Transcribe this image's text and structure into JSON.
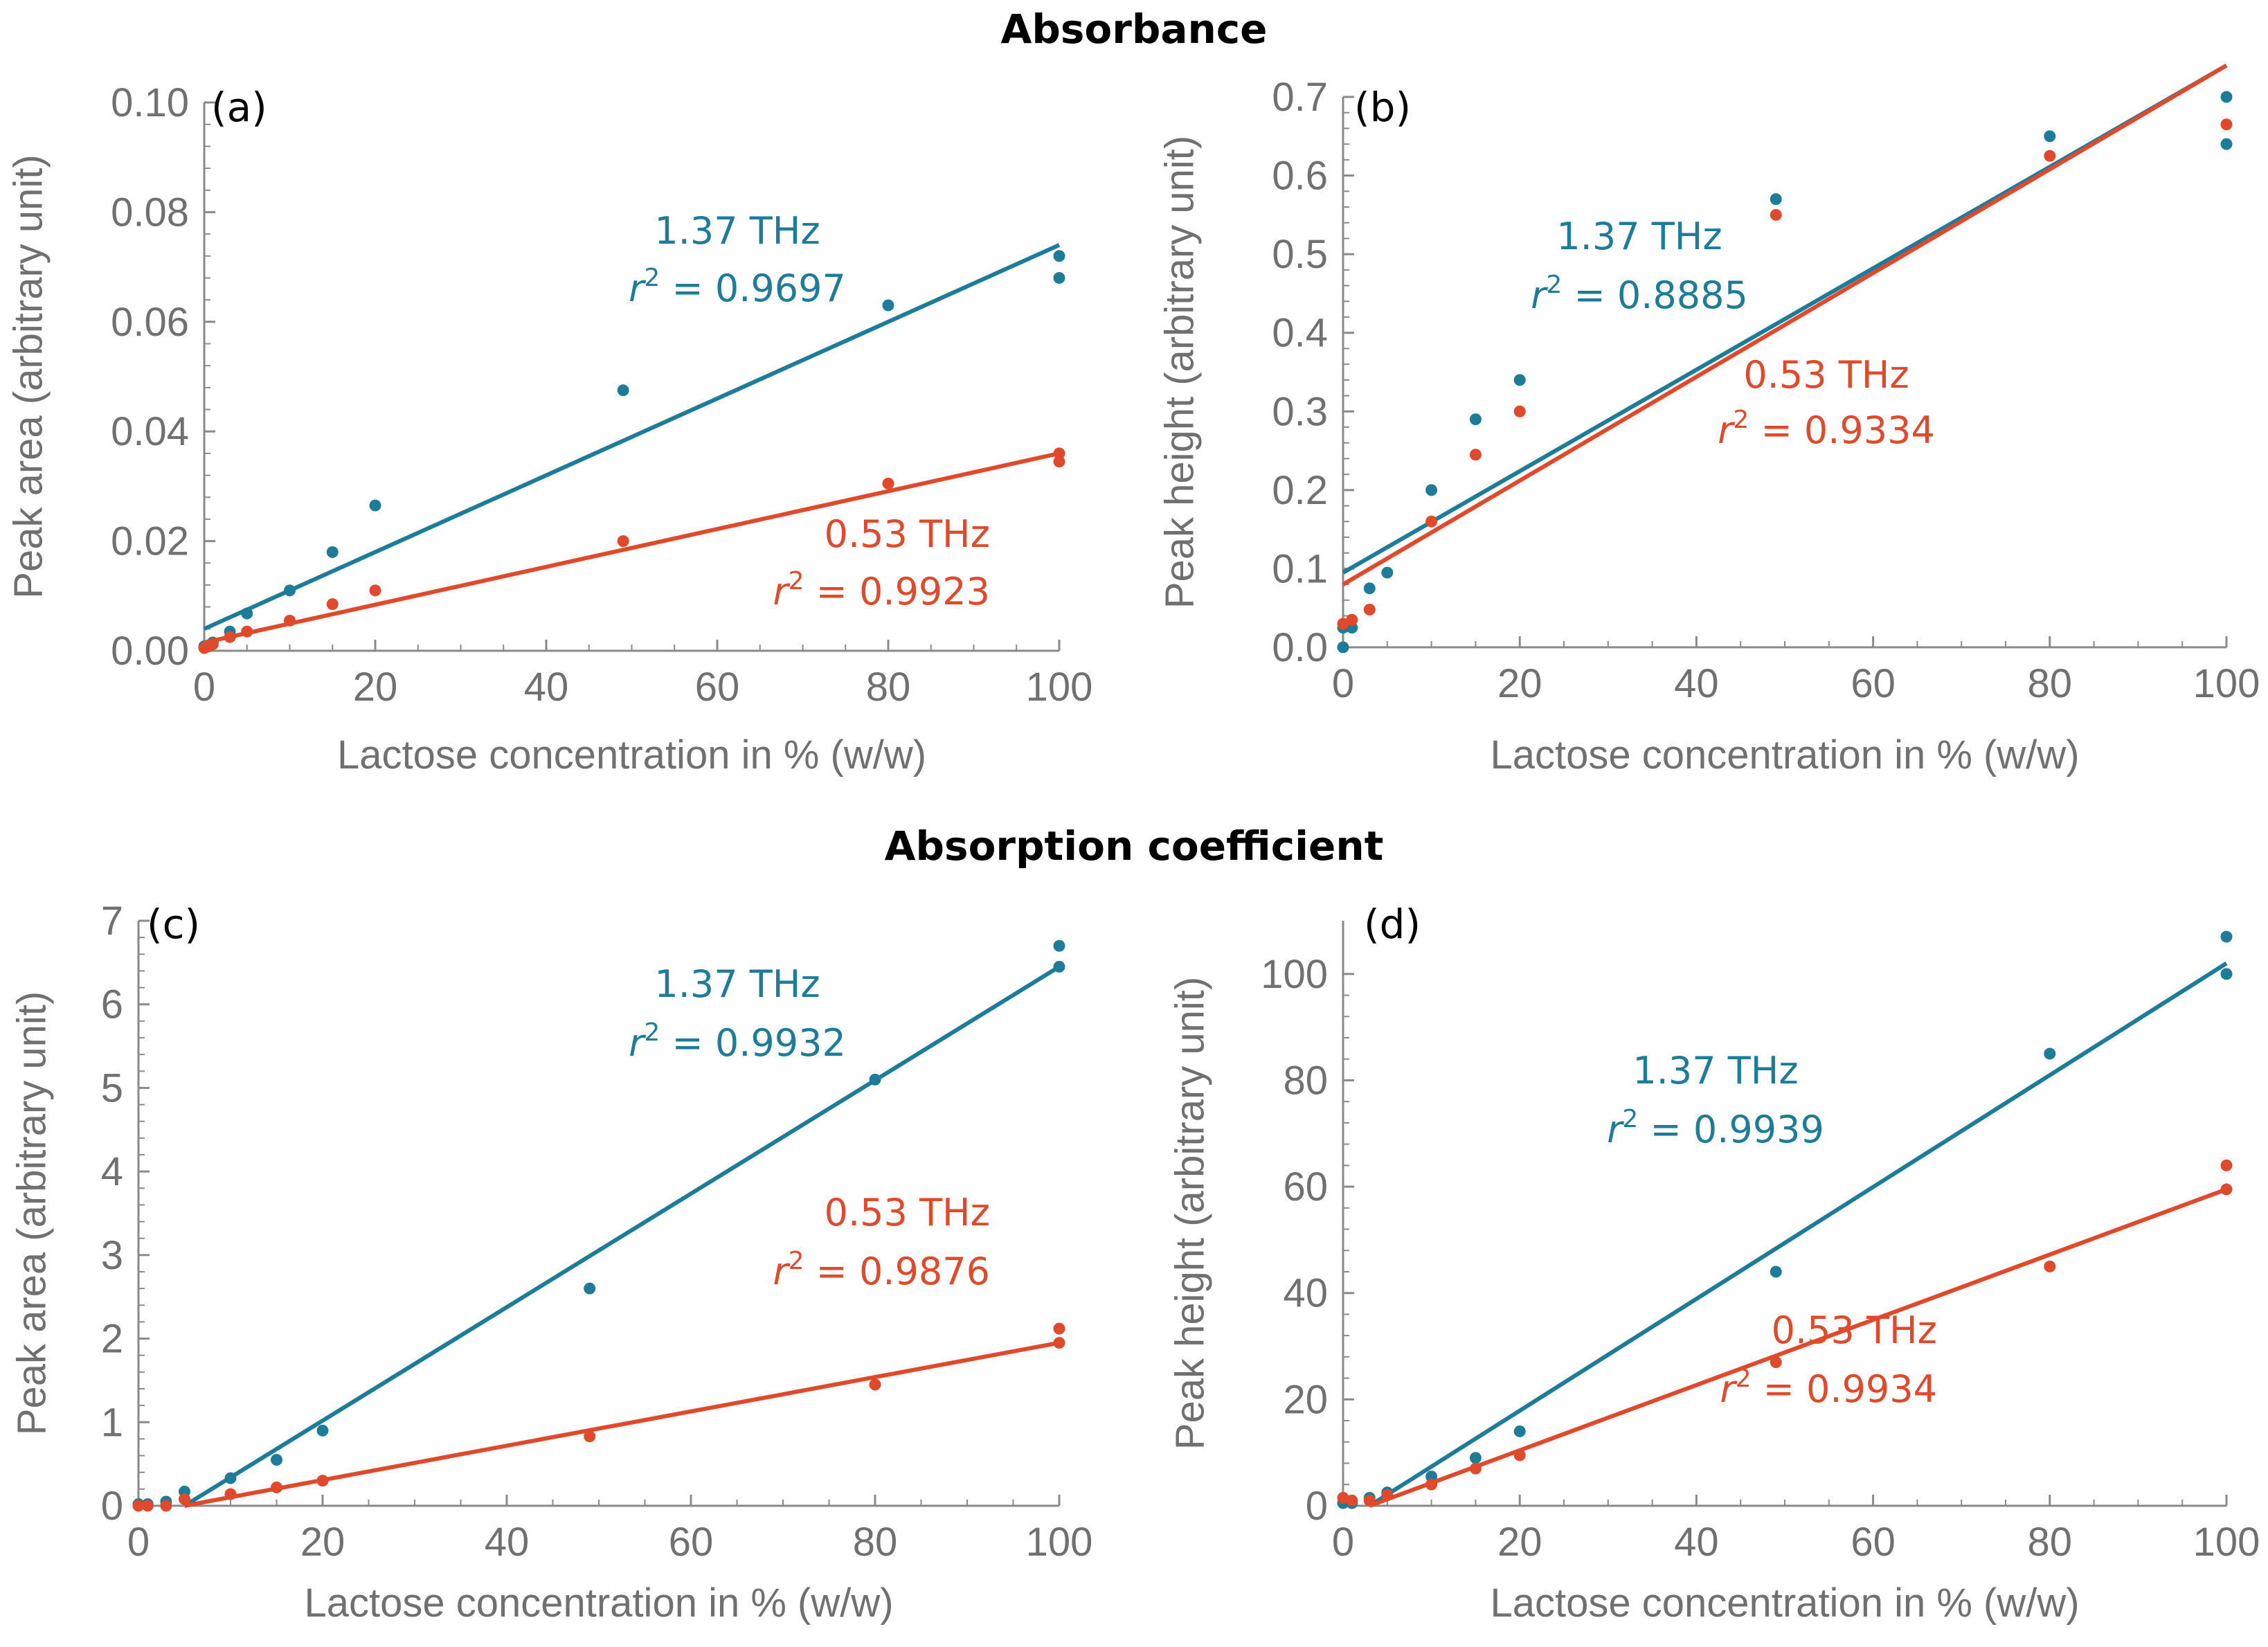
{
  "titles": {
    "top": "Absorbance",
    "bottom": "Absorption coefficient"
  },
  "colors": {
    "blue": "#1f7c99",
    "red": "#e04a2c",
    "axis": "#8a8a8a",
    "text": "#707070"
  },
  "chart_data": [
    {
      "type": "scatter",
      "label": "(a)",
      "xlabel": "Lactose concentration in % (w/w)",
      "ylabel": "Peak area (arbitrary unit)",
      "xlim": [
        0,
        100
      ],
      "ylim": [
        0,
        0.1
      ],
      "xticks": [
        0,
        20,
        40,
        60,
        80,
        100
      ],
      "yticks": [
        0,
        0.02,
        0.04,
        0.06,
        0.08,
        0.1
      ],
      "ytick_labels": [
        "0.00",
        "0.02",
        "0.04",
        "0.06",
        "0.08",
        "0.10"
      ],
      "series": [
        {
          "name": "1.37 THz",
          "r2_prefix": "r",
          "r2_sup": "2",
          "r2_text": " = 0.9697",
          "color": "blue",
          "x": [
            0,
            0.5,
            1,
            3,
            5,
            10,
            15,
            20,
            49,
            80,
            100,
            100
          ],
          "y": [
            0.0008,
            0.001,
            0.0015,
            0.0035,
            0.0068,
            0.011,
            0.018,
            0.0265,
            0.0475,
            0.063,
            0.072,
            0.068
          ],
          "fit": [
            [
              0,
              0.004
            ],
            [
              100,
              0.074
            ]
          ]
        },
        {
          "name": "0.53 THz",
          "r2_prefix": "r",
          "r2_sup": "2",
          "r2_text": " = 0.9923",
          "color": "red",
          "x": [
            0,
            0.5,
            1,
            3,
            5,
            10,
            15,
            20,
            49,
            80,
            100,
            100
          ],
          "y": [
            0.0005,
            0.0008,
            0.0012,
            0.0025,
            0.0035,
            0.0055,
            0.0085,
            0.011,
            0.02,
            0.0305,
            0.036,
            0.0345
          ],
          "fit": [
            [
              0,
              0.0015
            ],
            [
              100,
              0.036
            ]
          ]
        }
      ]
    },
    {
      "type": "scatter",
      "label": "(b)",
      "xlabel": "Lactose concentration in % (w/w)",
      "ylabel": "Peak height (arbitrary unit)",
      "xlim": [
        0,
        100
      ],
      "ylim": [
        0,
        0.7
      ],
      "xticks": [
        0,
        20,
        40,
        60,
        80,
        100
      ],
      "yticks": [
        0,
        0.1,
        0.2,
        0.3,
        0.4,
        0.5,
        0.6,
        0.7
      ],
      "ytick_labels": [
        "0.0",
        "0.1",
        "0.2",
        "0.3",
        "0.4",
        "0.5",
        "0.6",
        "0.7"
      ],
      "series": [
        {
          "name": "1.37 THz",
          "r2_prefix": "r",
          "r2_sup": "2",
          "r2_text": " = 0.8885",
          "color": "blue",
          "x": [
            0,
            0,
            1,
            3,
            5,
            10,
            15,
            20,
            49,
            80,
            100,
            100
          ],
          "y": [
            0.0,
            0.025,
            0.025,
            0.075,
            0.095,
            0.2,
            0.29,
            0.34,
            0.57,
            0.65,
            0.7,
            0.64
          ],
          "fit": [
            [
              0,
              0.095
            ],
            [
              100,
              0.74
            ]
          ]
        },
        {
          "name": "0.53 THz",
          "r2_prefix": "r",
          "r2_sup": "2",
          "r2_text": " = 0.9334",
          "color": "red",
          "x": [
            0,
            1,
            3,
            10,
            15,
            20,
            49,
            80,
            100
          ],
          "y": [
            0.03,
            0.035,
            0.048,
            0.16,
            0.245,
            0.3,
            0.55,
            0.625,
            0.665
          ],
          "fit": [
            [
              0,
              0.08
            ],
            [
              100,
              0.74
            ]
          ]
        }
      ]
    },
    {
      "type": "scatter",
      "label": "(c)",
      "xlabel": "Lactose concentration in % (w/w)",
      "ylabel": "Peak area (arbitrary unit)",
      "xlim": [
        0,
        100
      ],
      "ylim": [
        0,
        7
      ],
      "xticks": [
        0,
        20,
        40,
        60,
        80,
        100
      ],
      "yticks": [
        0,
        1,
        2,
        3,
        4,
        5,
        6,
        7
      ],
      "ytick_labels": [
        "0",
        "1",
        "2",
        "3",
        "4",
        "5",
        "6",
        "7"
      ],
      "series": [
        {
          "name": "1.37 THz",
          "r2_prefix": "r",
          "r2_sup": "2",
          "r2_text": " = 0.9932",
          "color": "blue",
          "x": [
            0,
            1,
            3,
            5,
            10,
            15,
            20,
            49,
            80,
            100,
            100
          ],
          "y": [
            0.02,
            0.02,
            0.05,
            0.17,
            0.33,
            0.55,
            0.9,
            2.6,
            5.1,
            6.7,
            6.45
          ],
          "fit": [
            [
              5,
              0.0
            ],
            [
              100,
              6.45
            ]
          ]
        },
        {
          "name": "0.53 THz",
          "r2_prefix": "r",
          "r2_sup": "2",
          "r2_text": " = 0.9876",
          "color": "red",
          "x": [
            0,
            1,
            3,
            5,
            10,
            15,
            20,
            49,
            80,
            100,
            100
          ],
          "y": [
            0.0,
            0.0,
            0.0,
            0.08,
            0.14,
            0.22,
            0.3,
            0.83,
            1.45,
            2.12,
            1.95
          ],
          "fit": [
            [
              5,
              0.0
            ],
            [
              100,
              1.95
            ]
          ]
        }
      ]
    },
    {
      "type": "scatter",
      "label": "(d)",
      "xlabel": "Lactose concentration in % (w/w)",
      "ylabel": "Peak height (arbitrary unit)",
      "xlim": [
        0,
        100
      ],
      "ylim": [
        0,
        110
      ],
      "xticks": [
        0,
        20,
        40,
        60,
        80,
        100
      ],
      "yticks": [
        0,
        20,
        40,
        60,
        80,
        100
      ],
      "ytick_labels": [
        "0",
        "20",
        "40",
        "60",
        "80",
        "100"
      ],
      "series": [
        {
          "name": "1.37 THz",
          "r2_prefix": "r",
          "r2_sup": "2",
          "r2_text": " = 0.9939",
          "color": "blue",
          "x": [
            0,
            1,
            3,
            5,
            10,
            15,
            20,
            49,
            80,
            100,
            100
          ],
          "y": [
            0.5,
            0.5,
            1.5,
            2.5,
            5.5,
            9,
            14,
            44,
            85,
            107,
            100
          ],
          "fit": [
            [
              3,
              0.0
            ],
            [
              100,
              102
            ]
          ]
        },
        {
          "name": "0.53 THz",
          "r2_prefix": "r",
          "r2_sup": "2",
          "r2_text": " = 0.9934",
          "color": "red",
          "x": [
            0,
            1,
            3,
            5,
            10,
            15,
            20,
            49,
            80,
            100,
            100
          ],
          "y": [
            1.5,
            1,
            1,
            2,
            4,
            7,
            9.5,
            27,
            45,
            64,
            59.5
          ],
          "fit": [
            [
              3,
              0.0
            ],
            [
              100,
              59.5
            ]
          ]
        }
      ]
    }
  ]
}
